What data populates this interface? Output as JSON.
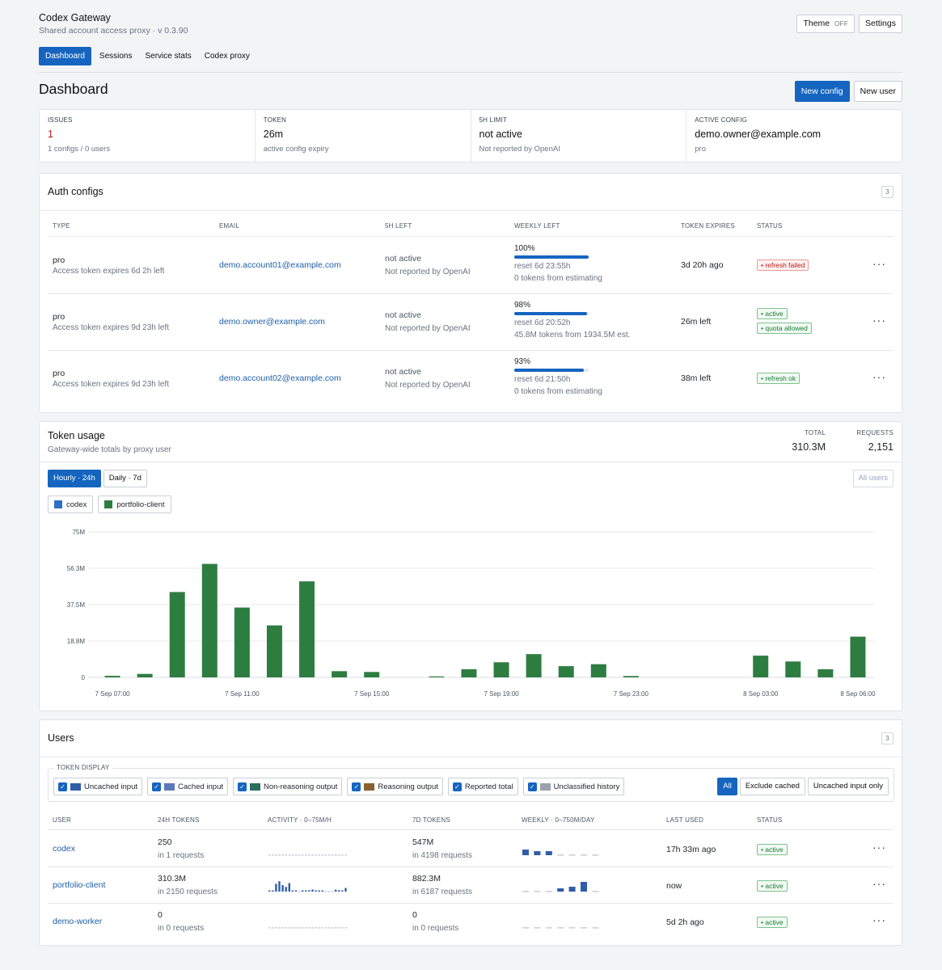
{
  "app": {
    "title": "Codex Gateway",
    "subtitle": "Shared account access proxy · v 0.3.90"
  },
  "top_actions": {
    "theme_label": "Theme",
    "theme_state": "OFF",
    "settings_label": "Settings"
  },
  "nav": {
    "tabs": [
      "Dashboard",
      "Sessions",
      "Service stats",
      "Codex proxy"
    ],
    "active": "Dashboard"
  },
  "page": {
    "title": "Dashboard",
    "new_config": "New config",
    "new_user": "New user"
  },
  "stats": [
    {
      "key": "ISSUES",
      "value": "1",
      "sub": "1 configs / 0 users"
    },
    {
      "key": "TOKEN",
      "value": "26m",
      "sub": "active config expiry"
    },
    {
      "key": "5H LIMIT",
      "value": "not active",
      "sub": "Not reported by OpenAI"
    },
    {
      "key": "ACTIVE CONFIG",
      "value": "demo.owner@example.com",
      "sub": "pro"
    }
  ],
  "auth": {
    "title": "Auth configs",
    "count": "3",
    "columns": [
      "TYPE",
      "EMAIL",
      "5H LEFT",
      "WEEKLY LEFT",
      "TOKEN EXPIRES",
      "STATUS"
    ],
    "rows": [
      {
        "type": "pro",
        "type_sub": "Access token expires 6d 2h left",
        "email": "demo.account01@example.com",
        "five_h": "not active",
        "five_h_sub": "Not reported by OpenAI",
        "weekly": "100%",
        "weekly_frac": 1.0,
        "reset": "reset 6d 23:55h",
        "tokens": "0 tokens from estimating",
        "expires": "3d 20h ago",
        "status": [
          "refresh failed"
        ],
        "status_kind": [
          "bad"
        ]
      },
      {
        "type": "pro",
        "type_sub": "Access token expires 9d 23h left",
        "email": "demo.owner@example.com",
        "five_h": "not active",
        "five_h_sub": "Not reported by OpenAI",
        "weekly": "98%",
        "weekly_frac": 0.98,
        "reset": "reset 6d 20:52h",
        "tokens": "45.8M tokens from 1934.5M est.",
        "expires": "26m left",
        "status": [
          "active",
          "quota allowed"
        ],
        "status_kind": [
          "ok",
          "ok"
        ]
      },
      {
        "type": "pro",
        "type_sub": "Access token expires 9d 23h left",
        "email": "demo.account02@example.com",
        "five_h": "not active",
        "five_h_sub": "Not reported by OpenAI",
        "weekly": "93%",
        "weekly_frac": 0.93,
        "reset": "reset 6d 21:50h",
        "tokens": "0 tokens from estimating",
        "expires": "38m left",
        "status": [
          "refresh ok"
        ],
        "status_kind": [
          "ok"
        ]
      }
    ]
  },
  "usage": {
    "title": "Token usage",
    "subtitle": "Gateway-wide totals by proxy user",
    "total_label": "TOTAL",
    "total_value": "310.3M",
    "requests_label": "REQUESTS",
    "requests_value": "2,151",
    "tabs": [
      "Hourly · 24h",
      "Daily · 7d"
    ],
    "all_users": "All users",
    "legend": [
      {
        "name": "codex",
        "color": "#2f6fc4"
      },
      {
        "name": "portfolio-client",
        "color": "#2e7d40"
      }
    ]
  },
  "chart_data": {
    "type": "bar",
    "stacked": true,
    "y_ticks": [
      "0",
      "18.8M",
      "37.5M",
      "56.3M",
      "75M"
    ],
    "ylim": [
      0,
      75000000
    ],
    "x_tick_labels": [
      "7 Sep 07:00",
      "7 Sep 11:00",
      "7 Sep 15:00",
      "7 Sep 19:00",
      "7 Sep 23:00",
      "8 Sep 03:00",
      "8 Sep 06:00"
    ],
    "categories": [
      "7 Sep 07:00",
      "7 Sep 08:00",
      "7 Sep 09:00",
      "7 Sep 10:00",
      "7 Sep 11:00",
      "7 Sep 12:00",
      "7 Sep 13:00",
      "7 Sep 14:00",
      "7 Sep 15:00",
      "7 Sep 16:00",
      "7 Sep 17:00",
      "7 Sep 18:00",
      "7 Sep 19:00",
      "7 Sep 20:00",
      "7 Sep 21:00",
      "7 Sep 22:00",
      "7 Sep 23:00",
      "8 Sep 00:00",
      "8 Sep 01:00",
      "8 Sep 02:00",
      "8 Sep 03:00",
      "8 Sep 04:00",
      "8 Sep 05:00",
      "8 Sep 06:00"
    ],
    "series": [
      {
        "name": "codex",
        "color": "#2f6fc4",
        "values": [
          0,
          0,
          0,
          0,
          0,
          0,
          0,
          0,
          0,
          0,
          0,
          0,
          0,
          0,
          0,
          0,
          0,
          0,
          0,
          0,
          0,
          0,
          0,
          0
        ]
      },
      {
        "name": "portfolio-client",
        "color": "#2e7d40",
        "values": [
          800000,
          1800000,
          44000000,
          58500000,
          36000000,
          26800000,
          49500000,
          3200000,
          2800000,
          0,
          500000,
          4200000,
          7800000,
          12000000,
          5800000,
          6800000,
          700000,
          0,
          0,
          0,
          11200000,
          8200000,
          4200000,
          21000000
        ]
      }
    ],
    "grid": true,
    "legend": "top-left"
  },
  "users": {
    "title": "Users",
    "count": "3",
    "token_display_label": "TOKEN DISPLAY",
    "toggles": [
      {
        "label": "Uncached input",
        "color": "#2f5da8"
      },
      {
        "label": "Cached input",
        "color": "#5b7ab8"
      },
      {
        "label": "Non-reasoning output",
        "color": "#2a6f5e"
      },
      {
        "label": "Reasoning output",
        "color": "#8a6030"
      },
      {
        "label": "Reported total",
        "color": ""
      },
      {
        "label": "Unclassified history",
        "color": "#9aa3ad"
      }
    ],
    "filters": [
      "All",
      "Exclude cached",
      "Uncached input only"
    ],
    "columns": [
      "USER",
      "24H TOKENS",
      "ACTIVITY · 0–75M/H",
      "7D TOKENS",
      "WEEKLY · 0–750M/DAY",
      "LAST USED",
      "STATUS"
    ],
    "rows": [
      {
        "user": "codex",
        "t24": "250",
        "t24_sub": "in 1 requests",
        "activity": [
          0,
          0,
          0,
          0,
          0,
          0,
          0,
          0,
          0,
          0,
          0,
          0,
          0,
          0,
          0,
          0,
          0,
          0,
          0,
          0,
          0,
          0,
          0,
          0
        ],
        "t7": "547M",
        "t7_sub": "in 4198 requests",
        "weekly": [
          0.07,
          0.05,
          0.05,
          0,
          0,
          0,
          0
        ],
        "last": "17h 33m ago",
        "status": "active"
      },
      {
        "user": "portfolio-client",
        "t24": "310.3M",
        "t24_sub": "in 2150 requests",
        "activity": [
          0.01,
          0.02,
          0.6,
          0.8,
          0.5,
          0.36,
          0.66,
          0.04,
          0.04,
          0,
          0.01,
          0.06,
          0.1,
          0.16,
          0.08,
          0.09,
          0.01,
          0,
          0,
          0,
          0.15,
          0.11,
          0.06,
          0.28
        ],
        "t7": "882.3M",
        "t7_sub": "in 6187 requests",
        "weekly": [
          0,
          0,
          0,
          0.04,
          0.06,
          0.12,
          0
        ],
        "last": "now",
        "status": "active"
      },
      {
        "user": "demo-worker",
        "t24": "0",
        "t24_sub": "in 0 requests",
        "activity": [
          0,
          0,
          0,
          0,
          0,
          0,
          0,
          0,
          0,
          0,
          0,
          0,
          0,
          0,
          0,
          0,
          0,
          0,
          0,
          0,
          0,
          0,
          0,
          0
        ],
        "t7": "0",
        "t7_sub": "in 0 requests",
        "weekly": [
          0,
          0,
          0,
          0,
          0,
          0,
          0
        ],
        "last": "5d 2h ago",
        "status": "active"
      }
    ]
  }
}
